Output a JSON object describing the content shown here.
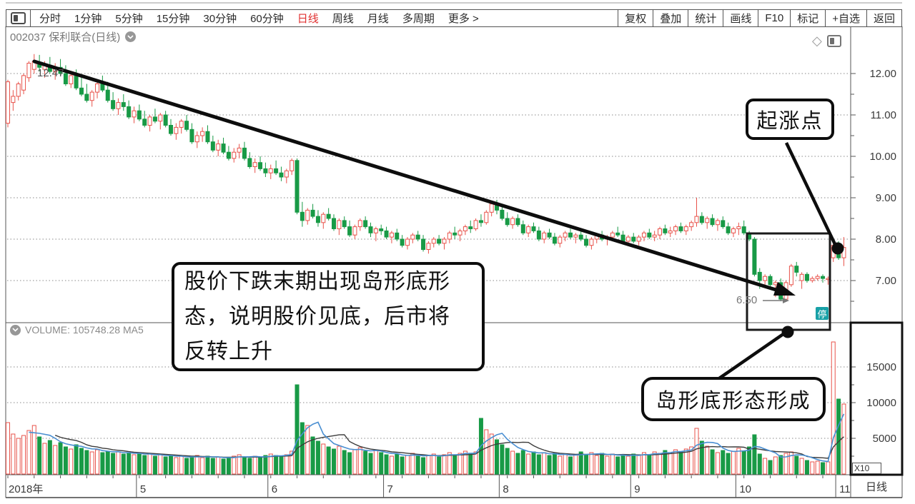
{
  "toolbar": {
    "periods": [
      {
        "label": "分时",
        "active": false
      },
      {
        "label": "1分钟",
        "active": false
      },
      {
        "label": "5分钟",
        "active": false
      },
      {
        "label": "15分钟",
        "active": false
      },
      {
        "label": "30分钟",
        "active": false
      },
      {
        "label": "60分钟",
        "active": false
      },
      {
        "label": "日线",
        "active": true
      },
      {
        "label": "周线",
        "active": false
      },
      {
        "label": "月线",
        "active": false
      },
      {
        "label": "多周期",
        "active": false
      }
    ],
    "more_label": "更多 >",
    "right_buttons": [
      "复权",
      "叠加",
      "统计",
      "画线",
      "F10",
      "标记",
      "+自选",
      "返回"
    ]
  },
  "chart_header": {
    "title": "002037 保利联合(日线)"
  },
  "price_pane": {
    "peak_label": "12.47",
    "low_label": "6.50",
    "halt_badge": "停"
  },
  "volume_pane": {
    "header": "VOLUME: 105748.28 MA5",
    "multiplier": "X10"
  },
  "time_axis": {
    "period_cell": "日线"
  },
  "annotations": {
    "note": "股价下跌末期出现岛形底形\n态，说明股价见底，后市将\n反转上升",
    "rise_point": "起涨点",
    "island_formed": "岛形底形态形成"
  },
  "icons": {
    "diamond_glyph": "◇"
  },
  "colors": {
    "up": "#e8524a",
    "down": "#189a46",
    "ma_fast": "#4a8fd2",
    "ma_slow": "#3c3c3c",
    "active_tab": "#e03030",
    "halt_badge_bg": "#18a1a7",
    "annotation": "#0d0d0d",
    "grid": "#8a8a8a",
    "frame": "#555555",
    "axis_text": "#3a3a3a"
  },
  "chart_data": {
    "type": "candlestick+volume",
    "symbol": "002037",
    "name": "保利联合",
    "period": "日线",
    "price_axis_ticks": [
      12,
      11,
      10,
      9,
      8,
      7
    ],
    "volume_axis_ticks": [
      15000,
      10000,
      5000
    ],
    "volume_unit": "X10",
    "high_annotation": 12.47,
    "low_annotation": 6.5,
    "months": [
      {
        "label": "2018年",
        "start_index": 0
      },
      {
        "label": "5",
        "start_index": 25
      },
      {
        "label": "6",
        "start_index": 50
      },
      {
        "label": "7",
        "start_index": 72
      },
      {
        "label": "8",
        "start_index": 94
      },
      {
        "label": "9",
        "start_index": 119
      },
      {
        "label": "10",
        "start_index": 139
      },
      {
        "label": "11",
        "start_index": 158
      }
    ],
    "island_pattern_range": [
      141,
      156
    ],
    "candles": [
      [
        10.8,
        11.85,
        10.7,
        11.8
      ],
      [
        11.3,
        11.6,
        11.1,
        11.45
      ],
      [
        11.45,
        11.8,
        11.35,
        11.75
      ],
      [
        11.6,
        12.0,
        11.5,
        11.95
      ],
      [
        11.9,
        12.3,
        11.8,
        12.25
      ],
      [
        12.1,
        12.47,
        12.0,
        12.3
      ],
      [
        12.25,
        12.45,
        12.05,
        12.15
      ],
      [
        12.1,
        12.3,
        11.9,
        12.2
      ],
      [
        12.2,
        12.4,
        12.0,
        12.05
      ],
      [
        12.05,
        12.25,
        11.85,
        12.15
      ],
      [
        12.15,
        12.35,
        11.95,
        12.0
      ],
      [
        12.0,
        12.2,
        11.7,
        11.75
      ],
      [
        11.75,
        12.05,
        11.65,
        11.95
      ],
      [
        11.95,
        12.1,
        11.6,
        11.65
      ],
      [
        11.65,
        11.9,
        11.45,
        11.5
      ],
      [
        11.5,
        11.75,
        11.3,
        11.35
      ],
      [
        11.35,
        11.6,
        11.2,
        11.55
      ],
      [
        11.55,
        11.8,
        11.4,
        11.75
      ],
      [
        11.75,
        11.95,
        11.55,
        11.6
      ],
      [
        11.6,
        11.8,
        11.3,
        11.35
      ],
      [
        11.35,
        11.55,
        11.1,
        11.15
      ],
      [
        11.15,
        11.4,
        11.0,
        11.3
      ],
      [
        11.3,
        11.5,
        11.1,
        11.2
      ],
      [
        11.2,
        11.35,
        10.9,
        10.95
      ],
      [
        10.95,
        11.2,
        10.8,
        11.1
      ],
      [
        11.1,
        11.25,
        10.85,
        10.9
      ],
      [
        10.9,
        11.1,
        10.7,
        10.75
      ],
      [
        10.75,
        11.0,
        10.6,
        10.95
      ],
      [
        10.95,
        11.15,
        10.8,
        10.85
      ],
      [
        10.85,
        11.05,
        10.65,
        11.0
      ],
      [
        11.0,
        11.1,
        10.7,
        10.75
      ],
      [
        10.75,
        10.9,
        10.5,
        10.55
      ],
      [
        10.55,
        10.8,
        10.4,
        10.7
      ],
      [
        10.7,
        10.9,
        10.55,
        10.85
      ],
      [
        10.85,
        11.0,
        10.6,
        10.65
      ],
      [
        10.65,
        10.8,
        10.3,
        10.35
      ],
      [
        10.35,
        10.6,
        10.2,
        10.5
      ],
      [
        10.5,
        10.7,
        10.35,
        10.6
      ],
      [
        10.6,
        10.75,
        10.3,
        10.35
      ],
      [
        10.35,
        10.5,
        10.1,
        10.15
      ],
      [
        10.15,
        10.4,
        10.0,
        10.3
      ],
      [
        10.3,
        10.45,
        10.05,
        10.1
      ],
      [
        10.1,
        10.25,
        9.9,
        9.95
      ],
      [
        9.95,
        10.2,
        9.85,
        10.1
      ],
      [
        10.1,
        10.3,
        9.95,
        10.2
      ],
      [
        10.2,
        10.35,
        9.9,
        9.95
      ],
      [
        9.95,
        10.1,
        9.7,
        9.75
      ],
      [
        9.75,
        9.95,
        9.6,
        9.85
      ],
      [
        9.85,
        10.0,
        9.65,
        9.7
      ],
      [
        9.7,
        9.85,
        9.5,
        9.6
      ],
      [
        9.6,
        9.8,
        9.45,
        9.7
      ],
      [
        9.7,
        9.9,
        9.55,
        9.6
      ],
      [
        9.6,
        9.75,
        9.4,
        9.5
      ],
      [
        9.5,
        9.7,
        9.35,
        9.65
      ],
      [
        9.65,
        9.95,
        9.55,
        9.9
      ],
      [
        9.9,
        9.95,
        8.6,
        8.65
      ],
      [
        8.65,
        8.9,
        8.3,
        8.45
      ],
      [
        8.45,
        8.75,
        8.35,
        8.7
      ],
      [
        8.7,
        8.85,
        8.5,
        8.55
      ],
      [
        8.55,
        8.7,
        8.3,
        8.4
      ],
      [
        8.4,
        8.65,
        8.25,
        8.6
      ],
      [
        8.6,
        8.75,
        8.45,
        8.5
      ],
      [
        8.5,
        8.6,
        8.2,
        8.25
      ],
      [
        8.25,
        8.5,
        8.1,
        8.45
      ],
      [
        8.45,
        8.55,
        8.25,
        8.3
      ],
      [
        8.3,
        8.45,
        8.05,
        8.1
      ],
      [
        8.1,
        8.35,
        8.0,
        8.3
      ],
      [
        8.3,
        8.5,
        8.2,
        8.45
      ],
      [
        8.45,
        8.55,
        8.25,
        8.3
      ],
      [
        8.3,
        8.4,
        8.05,
        8.15
      ],
      [
        8.15,
        8.3,
        7.95,
        8.25
      ],
      [
        8.25,
        8.35,
        8.1,
        8.2
      ],
      [
        8.2,
        8.3,
        8.0,
        8.05
      ],
      [
        8.05,
        8.2,
        7.9,
        8.15
      ],
      [
        8.15,
        8.25,
        7.95,
        8.0
      ],
      [
        8.0,
        8.1,
        7.8,
        7.85
      ],
      [
        7.85,
        8.05,
        7.75,
        8.0
      ],
      [
        8.0,
        8.15,
        7.9,
        8.1
      ],
      [
        8.1,
        8.2,
        7.95,
        8.0
      ],
      [
        8.0,
        8.1,
        7.7,
        7.75
      ],
      [
        7.75,
        7.95,
        7.65,
        7.9
      ],
      [
        7.9,
        8.05,
        7.8,
        8.0
      ],
      [
        8.0,
        8.1,
        7.85,
        7.9
      ],
      [
        7.9,
        8.05,
        7.75,
        8.0
      ],
      [
        8.0,
        8.2,
        7.9,
        8.15
      ],
      [
        8.15,
        8.3,
        8.0,
        8.1
      ],
      [
        8.1,
        8.25,
        7.95,
        8.2
      ],
      [
        8.2,
        8.35,
        8.1,
        8.3
      ],
      [
        8.3,
        8.45,
        8.15,
        8.25
      ],
      [
        8.25,
        8.5,
        8.2,
        8.45
      ],
      [
        8.45,
        8.6,
        8.3,
        8.4
      ],
      [
        8.4,
        8.7,
        8.35,
        8.65
      ],
      [
        8.65,
        8.9,
        8.55,
        8.85
      ],
      [
        8.85,
        8.95,
        8.6,
        8.7
      ],
      [
        8.7,
        8.8,
        8.45,
        8.5
      ],
      [
        8.5,
        8.65,
        8.3,
        8.35
      ],
      [
        8.35,
        8.55,
        8.25,
        8.5
      ],
      [
        8.5,
        8.6,
        8.3,
        8.35
      ],
      [
        8.35,
        8.45,
        8.1,
        8.15
      ],
      [
        8.15,
        8.35,
        8.05,
        8.3
      ],
      [
        8.3,
        8.4,
        8.15,
        8.2
      ],
      [
        8.2,
        8.3,
        7.95,
        8.0
      ],
      [
        8.0,
        8.2,
        7.9,
        8.15
      ],
      [
        8.15,
        8.25,
        8.0,
        8.05
      ],
      [
        8.05,
        8.15,
        7.85,
        7.9
      ],
      [
        7.9,
        8.1,
        7.8,
        8.05
      ],
      [
        8.05,
        8.2,
        7.95,
        8.15
      ],
      [
        8.15,
        8.25,
        8.0,
        8.05
      ],
      [
        8.05,
        8.15,
        7.9,
        8.1
      ],
      [
        8.1,
        8.2,
        7.95,
        8.0
      ],
      [
        8.0,
        8.1,
        7.8,
        7.85
      ],
      [
        7.85,
        8.05,
        7.75,
        8.0
      ],
      [
        8.0,
        8.15,
        7.9,
        8.1
      ],
      [
        8.1,
        8.2,
        7.95,
        8.0
      ],
      [
        8.0,
        8.1,
        7.85,
        8.05
      ],
      [
        8.05,
        8.2,
        7.95,
        8.15
      ],
      [
        8.15,
        8.3,
        8.05,
        8.1
      ],
      [
        8.1,
        8.2,
        7.9,
        7.95
      ],
      [
        7.95,
        8.1,
        7.85,
        8.05
      ],
      [
        8.05,
        8.15,
        7.9,
        7.95
      ],
      [
        7.95,
        8.1,
        7.85,
        8.05
      ],
      [
        8.05,
        8.2,
        7.95,
        8.15
      ],
      [
        8.15,
        8.25,
        8.0,
        8.05
      ],
      [
        8.05,
        8.2,
        7.95,
        8.1
      ],
      [
        8.1,
        8.3,
        8.0,
        8.25
      ],
      [
        8.25,
        8.35,
        8.1,
        8.15
      ],
      [
        8.15,
        8.3,
        8.05,
        8.2
      ],
      [
        8.2,
        8.35,
        8.1,
        8.3
      ],
      [
        8.3,
        8.4,
        8.15,
        8.2
      ],
      [
        8.2,
        8.35,
        8.1,
        8.3
      ],
      [
        8.3,
        8.45,
        8.2,
        8.4
      ],
      [
        8.4,
        9.0,
        8.3,
        8.55
      ],
      [
        8.55,
        8.65,
        8.35,
        8.4
      ],
      [
        8.4,
        8.55,
        8.25,
        8.5
      ],
      [
        8.5,
        8.6,
        8.3,
        8.35
      ],
      [
        8.35,
        8.5,
        8.2,
        8.45
      ],
      [
        8.45,
        8.55,
        8.25,
        8.3
      ],
      [
        8.3,
        8.4,
        8.1,
        8.15
      ],
      [
        8.15,
        8.3,
        8.05,
        8.25
      ],
      [
        8.25,
        8.4,
        8.1,
        8.3
      ],
      [
        8.3,
        8.45,
        8.1,
        8.15
      ],
      [
        8.15,
        8.2,
        7.95,
        8.0
      ],
      [
        8.0,
        8.05,
        7.1,
        7.15
      ],
      [
        7.2,
        7.3,
        6.8,
        7.0
      ],
      [
        7.0,
        7.15,
        6.9,
        7.1
      ],
      [
        7.1,
        7.15,
        6.85,
        6.9
      ],
      [
        6.9,
        7.0,
        6.6,
        6.95
      ],
      [
        6.95,
        7.05,
        6.5,
        6.55
      ],
      [
        6.55,
        7.0,
        6.5,
        6.95
      ],
      [
        6.9,
        7.4,
        6.85,
        7.35
      ],
      [
        7.35,
        7.45,
        7.1,
        7.2
      ],
      [
        7.0,
        7.2,
        6.8,
        7.15
      ],
      [
        7.15,
        7.2,
        6.95,
        7.0
      ],
      [
        7.0,
        7.1,
        6.95,
        7.05
      ],
      [
        7.05,
        7.15,
        7.0,
        7.1
      ],
      [
        7.1,
        7.15,
        6.95,
        7.05
      ],
      [
        7.05,
        7.1,
        6.9,
        7.05
      ],
      [
        7.55,
        7.9,
        7.45,
        7.85
      ],
      [
        7.85,
        7.95,
        7.5,
        7.55
      ],
      [
        7.55,
        8.05,
        7.35,
        7.8
      ]
    ],
    "volumes": [
      7200,
      5600,
      5000,
      5400,
      6100,
      6800,
      5200,
      4300,
      4700,
      4000,
      4400,
      3800,
      3500,
      4100,
      3600,
      3300,
      3100,
      3400,
      3000,
      3200,
      2900,
      3100,
      2800,
      3000,
      2700,
      2900,
      2600,
      2800,
      2500,
      2700,
      2400,
      2600,
      2300,
      2500,
      2200,
      2400,
      2600,
      2300,
      2500,
      2200,
      2400,
      2100,
      2300,
      2500,
      2700,
      2400,
      2200,
      2500,
      2300,
      2600,
      2800,
      2600,
      2400,
      2700,
      3200,
      12500,
      7200,
      6800,
      5200,
      4600,
      4200,
      3800,
      3500,
      3900,
      3300,
      3000,
      3400,
      3700,
      3200,
      2900,
      3300,
      3000,
      2700,
      2500,
      2800,
      2400,
      2600,
      2900,
      2500,
      2300,
      2600,
      2800,
      2400,
      2700,
      3000,
      2600,
      2900,
      3200,
      2800,
      3100,
      7800,
      6200,
      5600,
      4800,
      4100,
      3600,
      3200,
      2900,
      3300,
      2800,
      3100,
      2700,
      3000,
      2600,
      2900,
      2500,
      2800,
      2400,
      2700,
      3100,
      2700,
      3000,
      2600,
      2900,
      2500,
      2800,
      2400,
      2700,
      2500,
      2800,
      2600,
      3000,
      2700,
      3100,
      2900,
      3300,
      3000,
      3400,
      3100,
      3500,
      3800,
      6400,
      4600,
      3900,
      3400,
      3000,
      3300,
      2900,
      3200,
      3600,
      3200,
      3800,
      5500,
      2800,
      2200,
      1900,
      2400,
      2600,
      2900,
      3100,
      2500,
      2200,
      1900,
      1700,
      1800,
      1600,
      1700,
      18500,
      10500,
      9800
    ]
  }
}
